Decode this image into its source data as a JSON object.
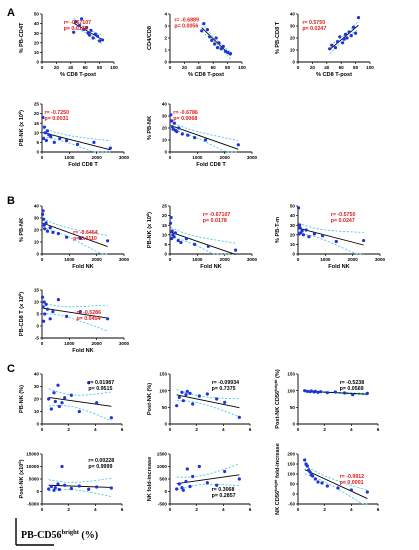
{
  "colors": {
    "point": "#1f33d6",
    "fit": "#000000",
    "ci": "#3fc3e6",
    "stat_red": "#e0191b",
    "stat_black": "#000000"
  },
  "panel_labels": [
    "A",
    "B",
    "C"
  ],
  "footer_label": {
    "text": "PB-CD56",
    "sup": "bright",
    "tail": " (%)"
  },
  "chart_data": [
    {
      "id": "A1",
      "type": "scatter",
      "xlabel": "% CD8 T-post",
      "ylabel": "% PB-CD4T",
      "xlim": [
        0,
        100
      ],
      "ylim": [
        0,
        50
      ],
      "xticks": [
        0,
        20,
        40,
        60,
        80,
        100
      ],
      "yticks": [
        0,
        10,
        20,
        30,
        40,
        50
      ],
      "r_text": "r= -0.67107",
      "p_text": "p= 0.0178",
      "stat_color": "red",
      "x": [
        44,
        47,
        52,
        55,
        58,
        62,
        64,
        66,
        68,
        71,
        74,
        77,
        80,
        84
      ],
      "y": [
        31,
        42,
        38,
        45,
        34,
        36,
        30,
        28,
        33,
        25,
        29,
        27,
        22,
        23
      ]
    },
    {
      "id": "A2",
      "type": "scatter",
      "xlabel": "% CD8 T-post",
      "ylabel": "CD4/CD8",
      "xlim": [
        0,
        100
      ],
      "ylim": [
        0,
        4
      ],
      "xticks": [
        0,
        20,
        40,
        60,
        80,
        100
      ],
      "yticks": [
        0,
        1,
        2,
        3,
        4
      ],
      "r_text": "r= -0.6889",
      "p_text": "p= 0.0056",
      "stat_color": "red",
      "x": [
        44,
        47,
        52,
        55,
        58,
        62,
        64,
        66,
        68,
        71,
        74,
        77,
        80,
        84
      ],
      "y": [
        2.6,
        3.2,
        2.7,
        2.1,
        1.8,
        1.5,
        2.0,
        1.2,
        1.6,
        1.1,
        1.3,
        0.9,
        0.8,
        0.7
      ]
    },
    {
      "id": "A3",
      "type": "scatter",
      "xlabel": "% CD8 T-post",
      "ylabel": "% PB-CD8 T",
      "xlim": [
        0,
        100
      ],
      "ylim": [
        0,
        40
      ],
      "xticks": [
        0,
        20,
        40,
        60,
        80,
        100
      ],
      "yticks": [
        0,
        10,
        20,
        30,
        40
      ],
      "r_text": "r= 0.5750",
      "p_text": "p= 0.0247",
      "stat_color": "red",
      "x": [
        44,
        47,
        52,
        55,
        58,
        62,
        64,
        66,
        68,
        71,
        74,
        77,
        80,
        84
      ],
      "y": [
        11,
        14,
        12,
        17,
        21,
        16,
        19,
        23,
        20,
        25,
        22,
        29,
        24,
        37
      ]
    },
    {
      "id": "A4",
      "type": "scatter",
      "xlabel": "Fold CD8 T",
      "ylabel": "PB-NK (x 10^6)",
      "xlim": [
        0,
        3000
      ],
      "ylim": [
        0,
        25
      ],
      "xticks": [
        0,
        1000,
        2000,
        3000
      ],
      "yticks": [
        0,
        5,
        10,
        15,
        20,
        25
      ],
      "r_text": "r= -0.7250",
      "p_text": "p= 0.0031",
      "stat_color": "red",
      "x": [
        30,
        60,
        90,
        120,
        160,
        200,
        250,
        320,
        450,
        650,
        900,
        1300,
        1900,
        2500
      ],
      "y": [
        18,
        7,
        13,
        10,
        6,
        11,
        9,
        8,
        5,
        7,
        6,
        4,
        5,
        2
      ]
    },
    {
      "id": "A5",
      "type": "scatter",
      "xlabel": "Fold CD8 T",
      "ylabel": "% PB-NK",
      "xlim": [
        0,
        3000
      ],
      "ylim": [
        0,
        40
      ],
      "xticks": [
        0,
        1000,
        2000,
        3000
      ],
      "yticks": [
        0,
        10,
        20,
        30,
        40
      ],
      "r_text": "r= -0.6786",
      "p_text": "p= 0.0068",
      "stat_color": "red",
      "x": [
        30,
        60,
        90,
        120,
        160,
        200,
        250,
        320,
        450,
        650,
        900,
        1300,
        2500
      ],
      "y": [
        31,
        26,
        21,
        19,
        24,
        18,
        17,
        20,
        15,
        14,
        12,
        10,
        6
      ]
    },
    {
      "id": "B1",
      "type": "scatter",
      "xlabel": "Fold NK",
      "ylabel": "% PB-NK",
      "xlim": [
        0,
        3000
      ],
      "ylim": [
        0,
        40
      ],
      "xticks": [
        0,
        1000,
        2000,
        3000
      ],
      "yticks": [
        0,
        10,
        20,
        30,
        40
      ],
      "r_text": "r= -0.6464",
      "p_text": "p= 0.0110",
      "stat_color": "red",
      "x": [
        20,
        40,
        60,
        80,
        100,
        150,
        200,
        300,
        400,
        600,
        900,
        1400,
        2400
      ],
      "y": [
        33,
        36,
        29,
        24,
        21,
        26,
        19,
        22,
        18,
        17,
        14,
        13,
        11
      ]
    },
    {
      "id": "B2",
      "type": "scatter",
      "xlabel": "Fold NK",
      "ylabel": "PB-NK (x 10^6)",
      "xlim": [
        0,
        3000
      ],
      "ylim": [
        0,
        25
      ],
      "xticks": [
        0,
        1000,
        2000,
        3000
      ],
      "yticks": [
        0,
        5,
        10,
        15,
        20,
        25
      ],
      "r_text": "r= -0.67107",
      "p_text": "p= 0.0178",
      "stat_color": "red",
      "x": [
        20,
        40,
        60,
        80,
        100,
        150,
        200,
        300,
        400,
        600,
        900,
        1400,
        2400
      ],
      "y": [
        16,
        19,
        8,
        12,
        10,
        9,
        11,
        7,
        6,
        8,
        5,
        4,
        2
      ]
    },
    {
      "id": "B3",
      "type": "scatter",
      "xlabel": "Fold NK",
      "ylabel": "% PB-T-m",
      "xlim": [
        0,
        3000
      ],
      "ylim": [
        0,
        50
      ],
      "xticks": [
        0,
        1000,
        2000,
        3000
      ],
      "yticks": [
        0,
        10,
        20,
        30,
        40,
        50
      ],
      "r_text": "r= -0.5750",
      "p_text": "p= 0.0247",
      "stat_color": "red",
      "x": [
        20,
        40,
        60,
        80,
        100,
        150,
        200,
        300,
        400,
        600,
        900,
        1400,
        2400
      ],
      "y": [
        48,
        21,
        30,
        27,
        22,
        24,
        20,
        25,
        18,
        21,
        19,
        13,
        14
      ]
    },
    {
      "id": "B4",
      "type": "scatter",
      "xlabel": "Fold NK",
      "ylabel": "PB-CD8 T (x 10^6)",
      "xlim": [
        0,
        3000
      ],
      "ylim": [
        -5,
        15
      ],
      "xticks": [
        0,
        1000,
        2000,
        3000
      ],
      "yticks": [
        -5,
        0,
        5,
        10,
        15
      ],
      "r_text": "r= -0.5286",
      "p_text": "p= 0.0454",
      "stat_color": "red",
      "x": [
        20,
        40,
        60,
        80,
        100,
        150,
        200,
        300,
        400,
        600,
        900,
        1400,
        2400
      ],
      "y": [
        12,
        8,
        2,
        10,
        5,
        9,
        7,
        3,
        6,
        11,
        4,
        6,
        3
      ]
    },
    {
      "id": "C1",
      "type": "scatter",
      "xlabel": "",
      "ylabel": "PB-NK (%)",
      "xlim": [
        0,
        6
      ],
      "ylim": [
        0,
        40
      ],
      "xticks": [
        0,
        2,
        4,
        6
      ],
      "yticks": [
        0,
        10,
        20,
        30,
        40
      ],
      "r_text": "r= 0.01987",
      "p_text": "p= 0.9515",
      "stat_color": "black",
      "x": [
        0.5,
        0.7,
        0.9,
        1.0,
        1.2,
        1.3,
        1.5,
        1.7,
        2.2,
        2.8,
        3.5,
        4.1,
        5.2
      ],
      "y": [
        20,
        12,
        25,
        18,
        31,
        14,
        17,
        21,
        23,
        10,
        33,
        17,
        5
      ]
    },
    {
      "id": "C2",
      "type": "scatter",
      "xlabel": "",
      "ylabel": "Post-NK (%)",
      "xlim": [
        0,
        6
      ],
      "ylim": [
        0,
        150
      ],
      "xticks": [
        0,
        2,
        4,
        6
      ],
      "yticks": [
        0,
        50,
        100,
        150
      ],
      "r_text": "r= -0.09934",
      "p_text": "p= 0.7375",
      "stat_color": "black",
      "x": [
        0.5,
        0.7,
        0.9,
        1.0,
        1.2,
        1.3,
        1.5,
        1.7,
        2.2,
        2.8,
        3.5,
        4.1,
        5.2
      ],
      "y": [
        55,
        80,
        95,
        70,
        88,
        98,
        92,
        60,
        84,
        90,
        75,
        65,
        20
      ]
    },
    {
      "id": "C3",
      "type": "scatter",
      "xlabel": "",
      "ylabel": "Post-NK CD56^bright (%)",
      "xlim": [
        0,
        6
      ],
      "ylim": [
        0,
        150
      ],
      "xticks": [
        0,
        2,
        4,
        6
      ],
      "yticks": [
        0,
        50,
        100,
        150
      ],
      "r_text": "r= -0.5238",
      "p_text": "p= 0.0569",
      "stat_color": "black",
      "x": [
        0.5,
        0.7,
        0.9,
        1.0,
        1.2,
        1.3,
        1.5,
        1.7,
        2.2,
        2.8,
        3.5,
        4.1,
        5.2
      ],
      "y": [
        100,
        98,
        97,
        99,
        96,
        98,
        95,
        97,
        94,
        96,
        93,
        88,
        92
      ]
    },
    {
      "id": "C4",
      "type": "scatter",
      "xlabel": "",
      "ylabel": "Post-NK (x10^6)",
      "xlim": [
        0,
        6
      ],
      "ylim": [
        -5000,
        15000
      ],
      "xticks": [
        0,
        2,
        4,
        6
      ],
      "yticks": [
        -5000,
        0,
        5000,
        10000,
        15000
      ],
      "r_text": "r= 0.00228",
      "p_text": "p= 0.9999",
      "stat_color": "black",
      "x": [
        0.5,
        0.7,
        0.9,
        1.0,
        1.2,
        1.3,
        1.5,
        1.7,
        2.2,
        2.8,
        3.5,
        4.1,
        5.2
      ],
      "y": [
        1000,
        2000,
        500,
        1500,
        3000,
        800,
        10000,
        2500,
        1200,
        2200,
        900,
        1800,
        1400
      ]
    },
    {
      "id": "C5",
      "type": "scatter",
      "xlabel": "",
      "ylabel": "NK fold-increase",
      "xlim": [
        0,
        6
      ],
      "ylim": [
        -500,
        1500
      ],
      "xticks": [
        0,
        2,
        4,
        6
      ],
      "yticks": [
        -500,
        0,
        500,
        1000,
        1500
      ],
      "r_text": "r= 0.3068",
      "p_text": "p= 0.2857",
      "stat_color": "black",
      "x": [
        0.5,
        0.7,
        0.9,
        1.0,
        1.2,
        1.3,
        1.5,
        1.7,
        2.2,
        2.8,
        3.5,
        4.1,
        5.2
      ],
      "y": [
        100,
        300,
        150,
        50,
        400,
        900,
        200,
        600,
        1000,
        350,
        250,
        800,
        500
      ]
    },
    {
      "id": "C6",
      "type": "scatter",
      "xlabel": "",
      "ylabel": "NK CD56^bright fold-increase",
      "xlim": [
        0,
        6
      ],
      "ylim": [
        -50,
        200
      ],
      "xticks": [
        0,
        2,
        4,
        6
      ],
      "yticks": [
        -50,
        0,
        50,
        100,
        150,
        200
      ],
      "r_text": "r= -0.9912",
      "p_text": "p= 0.0001",
      "stat_color": "red",
      "x": [
        0.5,
        0.6,
        0.7,
        0.8,
        0.9,
        1.0,
        1.1,
        1.3,
        1.5,
        1.8,
        2.2,
        3.0,
        4.0,
        5.2
      ],
      "y": [
        170,
        150,
        140,
        120,
        110,
        95,
        90,
        75,
        60,
        55,
        40,
        30,
        20,
        10
      ]
    }
  ]
}
